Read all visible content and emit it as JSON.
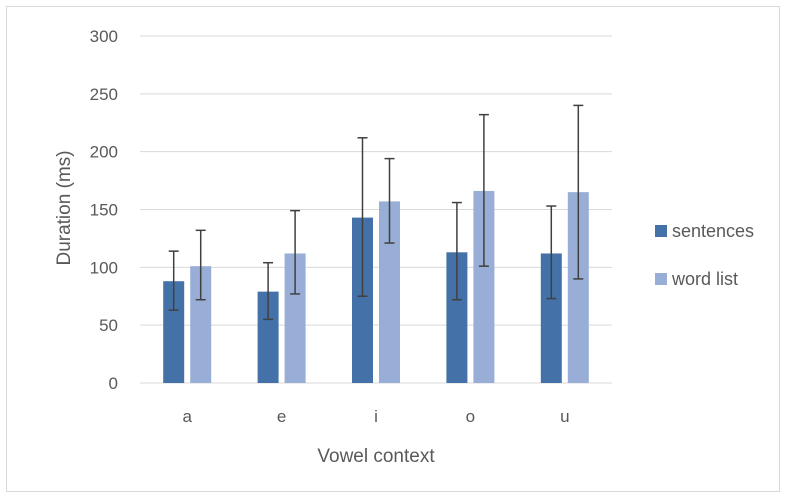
{
  "chart_data": {
    "type": "bar",
    "title": "",
    "xlabel": "Vowel context",
    "ylabel": "Duration (ms)",
    "categories": [
      "a",
      "e",
      "i",
      "o",
      "u"
    ],
    "ylim": [
      0,
      300
    ],
    "yticks": [
      0,
      50,
      100,
      150,
      200,
      250,
      300
    ],
    "grid": true,
    "legend_position": "right",
    "error_bars": true,
    "series": [
      {
        "name": "sentences",
        "color": "#4472a8",
        "values": [
          88,
          79,
          143,
          113,
          112
        ],
        "error_low": [
          63,
          55,
          75,
          72,
          73
        ],
        "error_high": [
          114,
          104,
          212,
          156,
          153
        ]
      },
      {
        "name": "word list",
        "color": "#98aed6",
        "values": [
          101,
          112,
          157,
          166,
          165
        ],
        "error_low": [
          72,
          77,
          121,
          101,
          90
        ],
        "error_high": [
          132,
          149,
          194,
          232,
          240
        ]
      }
    ]
  },
  "colors": {
    "grid": "#d9d9d9",
    "axis": "#d9d9d9",
    "text": "#595959",
    "error_bar": "#404040",
    "frame": "#d9d9d9"
  }
}
